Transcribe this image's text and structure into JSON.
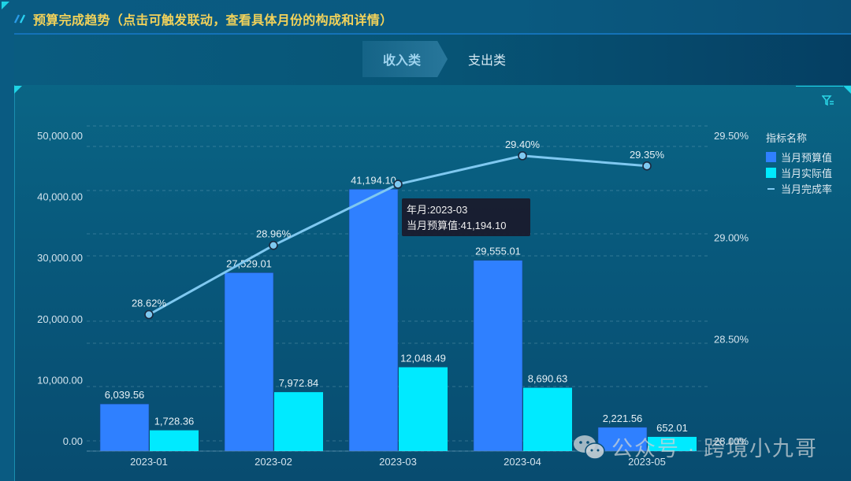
{
  "header": {
    "title": "预算完成趋势（点击可触发联动，查看具体月份的构成和详情）"
  },
  "tabs": [
    {
      "label": "收入类",
      "active": true
    },
    {
      "label": "支出类",
      "active": false
    }
  ],
  "legend": {
    "title": "指标名称",
    "items": [
      {
        "label": "当月预算值",
        "color": "#2f80ff",
        "type": "bar"
      },
      {
        "label": "当月实际值",
        "color": "#00eaff",
        "type": "bar"
      },
      {
        "label": "当月完成率",
        "color": "#7fc8f0",
        "type": "line"
      }
    ]
  },
  "tooltip": {
    "line1": "年月:2023-03",
    "line2": "当月预算值:41,194.10"
  },
  "watermark": {
    "text": "公众号 · 跨境小九哥"
  },
  "colors": {
    "budget": "#2f80ff",
    "actual": "#00eaff",
    "rate": "#7fc8f0",
    "title": "#f2d25a"
  },
  "chart_data": {
    "type": "bar",
    "title": "预算完成趋势",
    "categories": [
      "2023-01",
      "2023-02",
      "2023-03",
      "2023-04",
      "2023-05"
    ],
    "series": [
      {
        "name": "当月预算值",
        "type": "bar",
        "axis": "left",
        "values": [
          6039.56,
          27529.01,
          41194.1,
          29555.01,
          2221.56
        ],
        "labels": [
          "6,039.56",
          "27,529.01",
          "41,194.10",
          "29,555.01",
          "2,221.56"
        ]
      },
      {
        "name": "当月实际值",
        "type": "bar",
        "axis": "left",
        "values": [
          1728.36,
          7972.84,
          12048.49,
          8690.63,
          652.01
        ],
        "labels": [
          "1,728.36",
          "7,972.84",
          "12,048.49",
          "8,690.63",
          "652.01"
        ]
      },
      {
        "name": "当月完成率",
        "type": "line",
        "axis": "right",
        "values": [
          28.62,
          28.96,
          29.26,
          29.4,
          29.35
        ],
        "labels": [
          "28.62%",
          "28.96%",
          "",
          "29.40%",
          "29.35%"
        ]
      }
    ],
    "left_axis": {
      "ticks": [
        "0.00",
        "10,000.00",
        "20,000.00",
        "30,000.00",
        "40,000.00",
        "50,000.00"
      ],
      "ylim": [
        0,
        50000
      ]
    },
    "right_axis": {
      "ticks": [
        "28.00%",
        "28.50%",
        "29.00%",
        "29.50%"
      ],
      "ylim": [
        28.0,
        29.5
      ]
    },
    "grid": true,
    "legend_position": "right"
  }
}
